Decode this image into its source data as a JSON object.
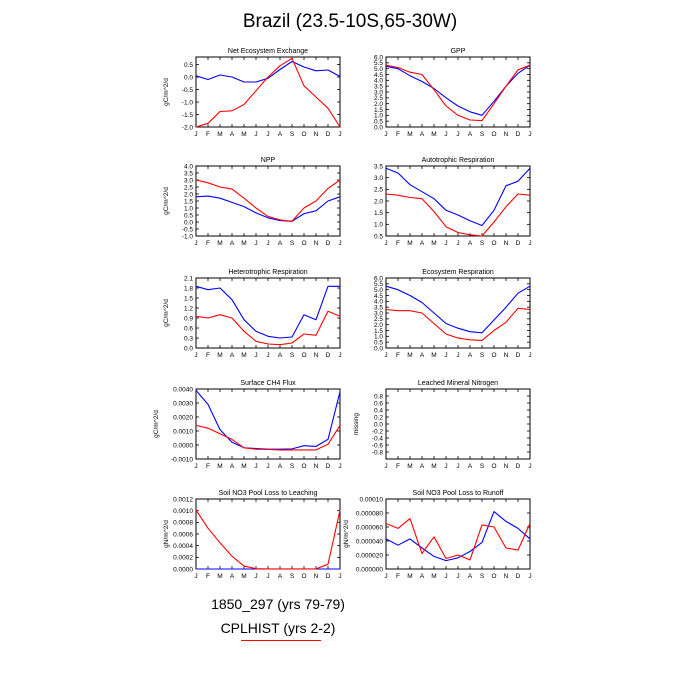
{
  "title": "Brazil (23.5-10S,65-30W)",
  "legend": {
    "case_a": "1850_297 (yrs 79-79)",
    "case_b": "CPLHIST (yrs 2-2)"
  },
  "colors": {
    "case_a": "#0000ff",
    "case_b": "#ff0000"
  },
  "chart_data": [
    {
      "type": "line",
      "title": "Net Ecosystem Exchange",
      "ylabel": "gC/m^2/d",
      "x": [
        "J",
        "F",
        "M",
        "A",
        "M",
        "J",
        "J",
        "A",
        "S",
        "O",
        "N",
        "D",
        "J"
      ],
      "ylim": [
        -2.0,
        0.8
      ],
      "ytick_values": [
        -2.0,
        -1.5,
        -1.0,
        -0.5,
        0.0,
        0.5
      ],
      "ytick_labels": [
        "-2.0",
        "-1.5",
        "-1.0",
        "-0.5",
        "0.0",
        "0.5"
      ],
      "series": [
        {
          "color": "#0000ff",
          "values": [
            0.05,
            -0.1,
            0.08,
            0.0,
            -0.2,
            -0.2,
            -0.05,
            0.3,
            0.62,
            0.4,
            0.25,
            0.28,
            0.02
          ]
        },
        {
          "color": "#ff0000",
          "values": [
            -2.0,
            -1.85,
            -1.38,
            -1.35,
            -1.1,
            -0.55,
            0.0,
            0.45,
            0.75,
            -0.35,
            -0.8,
            -1.25,
            -2.0
          ]
        }
      ]
    },
    {
      "type": "line",
      "title": "GPP",
      "ylabel": "",
      "x": [
        "J",
        "F",
        "M",
        "A",
        "M",
        "J",
        "J",
        "A",
        "S",
        "O",
        "N",
        "D",
        "J"
      ],
      "ylim": [
        0.0,
        6.0
      ],
      "ytick_values": [
        0,
        0.5,
        1,
        1.5,
        2,
        2.5,
        3,
        3.5,
        4,
        4.5,
        5,
        5.5,
        6
      ],
      "ytick_labels": [
        "0.0",
        "0.5",
        "1.0",
        "1.5",
        "2.0",
        "2.5",
        "3.0",
        "3.5",
        "4.0",
        "4.5",
        "5.0",
        "5.5",
        "6.0"
      ],
      "series": [
        {
          "color": "#0000ff",
          "values": [
            5.2,
            5.0,
            4.4,
            3.9,
            3.3,
            2.5,
            1.8,
            1.3,
            1.0,
            2.2,
            3.5,
            4.6,
            5.3
          ]
        },
        {
          "color": "#ff0000",
          "values": [
            5.3,
            5.1,
            4.7,
            4.5,
            3.2,
            1.8,
            1.0,
            0.6,
            0.55,
            2.0,
            3.5,
            4.9,
            5.3
          ]
        }
      ]
    },
    {
      "type": "line",
      "title": "NPP",
      "ylabel": "gC/m^2/d",
      "x": [
        "J",
        "F",
        "M",
        "A",
        "M",
        "J",
        "J",
        "A",
        "S",
        "O",
        "N",
        "D",
        "J"
      ],
      "ylim": [
        -1.0,
        4.0
      ],
      "ytick_values": [
        -1,
        -0.5,
        0,
        0.5,
        1,
        1.5,
        2,
        2.5,
        3,
        3.5,
        4
      ],
      "ytick_labels": [
        "-1.0",
        "-0.5",
        "0.0",
        "0.5",
        "1.0",
        "1.5",
        "2.0",
        "2.5",
        "3.0",
        "3.5",
        "4.0"
      ],
      "series": [
        {
          "color": "#0000ff",
          "values": [
            1.8,
            1.85,
            1.7,
            1.4,
            1.1,
            0.65,
            0.3,
            0.1,
            0.05,
            0.6,
            0.8,
            1.5,
            1.8
          ]
        },
        {
          "color": "#ff0000",
          "values": [
            3.0,
            2.8,
            2.5,
            2.35,
            1.7,
            1.0,
            0.4,
            0.15,
            0.05,
            1.0,
            1.5,
            2.4,
            3.0
          ]
        }
      ]
    },
    {
      "type": "line",
      "title": "Autotrophic Respiration",
      "ylabel": "",
      "x": [
        "J",
        "F",
        "M",
        "A",
        "M",
        "J",
        "J",
        "A",
        "S",
        "O",
        "N",
        "D",
        "J"
      ],
      "ylim": [
        0.5,
        3.5
      ],
      "ytick_values": [
        0.5,
        1,
        1.5,
        2,
        2.5,
        3,
        3.5
      ],
      "ytick_labels": [
        "0.5",
        "1.0",
        "1.5",
        "2.0",
        "2.5",
        "3.0",
        "3.5"
      ],
      "series": [
        {
          "color": "#0000ff",
          "values": [
            3.4,
            3.2,
            2.7,
            2.4,
            2.1,
            1.6,
            1.4,
            1.15,
            0.95,
            1.6,
            2.65,
            2.85,
            3.4
          ]
        },
        {
          "color": "#ff0000",
          "values": [
            2.3,
            2.25,
            2.15,
            2.1,
            1.55,
            0.9,
            0.65,
            0.55,
            0.5,
            1.1,
            1.75,
            2.3,
            2.25
          ]
        }
      ]
    },
    {
      "type": "line",
      "title": "Heterotrophic Respiration",
      "ylabel": "gC/m^2/d",
      "x": [
        "J",
        "F",
        "M",
        "A",
        "M",
        "J",
        "J",
        "A",
        "S",
        "O",
        "N",
        "D",
        "J"
      ],
      "ylim": [
        0.0,
        2.1
      ],
      "ytick_values": [
        0,
        0.3,
        0.6,
        0.9,
        1.2,
        1.5,
        1.8,
        2.1
      ],
      "ytick_labels": [
        "0.0",
        "0.3",
        "0.6",
        "0.9",
        "1.2",
        "1.5",
        "1.8",
        "2.1"
      ],
      "series": [
        {
          "color": "#0000ff",
          "values": [
            1.85,
            1.75,
            1.8,
            1.45,
            0.85,
            0.5,
            0.35,
            0.3,
            0.33,
            1.0,
            0.85,
            1.85,
            1.85
          ]
        },
        {
          "color": "#ff0000",
          "values": [
            0.95,
            0.9,
            1.0,
            0.9,
            0.5,
            0.2,
            0.12,
            0.1,
            0.15,
            0.42,
            0.38,
            1.1,
            0.95
          ]
        }
      ]
    },
    {
      "type": "line",
      "title": "Ecosystem Respiration",
      "ylabel": "",
      "x": [
        "J",
        "F",
        "M",
        "A",
        "M",
        "J",
        "J",
        "A",
        "S",
        "O",
        "N",
        "D",
        "J"
      ],
      "ylim": [
        0.0,
        6.0
      ],
      "ytick_values": [
        0,
        0.5,
        1,
        1.5,
        2,
        2.5,
        3,
        3.5,
        4,
        4.5,
        5,
        5.5,
        6
      ],
      "ytick_labels": [
        "0.0",
        "0.5",
        "1.0",
        "1.5",
        "2.0",
        "2.5",
        "3.0",
        "3.5",
        "4.0",
        "4.5",
        "5.0",
        "5.5",
        "6.0"
      ],
      "series": [
        {
          "color": "#0000ff",
          "values": [
            5.3,
            5.0,
            4.5,
            3.9,
            3.0,
            2.1,
            1.7,
            1.4,
            1.3,
            2.4,
            3.5,
            4.7,
            5.3
          ]
        },
        {
          "color": "#ff0000",
          "values": [
            3.3,
            3.2,
            3.2,
            3.0,
            2.1,
            1.2,
            0.85,
            0.7,
            0.65,
            1.5,
            2.2,
            3.4,
            3.3
          ]
        }
      ]
    },
    {
      "type": "line",
      "title": "Surface CH4 Flux",
      "ylabel": "gC/m^2/d",
      "x": [
        "J",
        "F",
        "M",
        "A",
        "M",
        "J",
        "J",
        "A",
        "S",
        "O",
        "N",
        "D",
        "J"
      ],
      "ylim": [
        -0.001,
        0.004
      ],
      "ytick_values": [
        -0.001,
        0,
        0.001,
        0.002,
        0.003,
        0.004
      ],
      "ytick_labels": [
        "-0.0010",
        "0.0000",
        "0.0010",
        "0.0020",
        "0.0030",
        "0.0040"
      ],
      "series": [
        {
          "color": "#0000ff",
          "values": [
            0.0039,
            0.0029,
            0.0011,
            0.0002,
            -0.0002,
            -0.00025,
            -0.0003,
            -0.0003,
            -0.00028,
            -5e-05,
            -0.0001,
            0.0004,
            0.0038
          ]
        },
        {
          "color": "#ff0000",
          "values": [
            0.0014,
            0.0012,
            0.0008,
            0.0004,
            -0.0002,
            -0.0003,
            -0.00032,
            -0.00035,
            -0.00035,
            -0.00035,
            -0.00035,
            5e-05,
            0.0014
          ]
        }
      ]
    },
    {
      "type": "line",
      "title": "Leached Mineral Nitrogen",
      "ylabel": "missing",
      "x": [
        "J",
        "F",
        "M",
        "A",
        "M",
        "J",
        "J",
        "A",
        "S",
        "O",
        "N",
        "D",
        "J"
      ],
      "ylim": [
        -1.0,
        1.0
      ],
      "ytick_values": [
        -0.8,
        -0.6,
        -0.4,
        -0.2,
        0,
        0.2,
        0.4,
        0.6,
        0.8
      ],
      "ytick_labels": [
        "-0.8",
        "-0.6",
        "-0.4",
        "-0.2",
        "0.0",
        "0.2",
        "0.4",
        "0.6",
        "0.8"
      ],
      "series": []
    },
    {
      "type": "line",
      "title": "Soil NO3 Pool Loss to Leaching",
      "ylabel": "gN/m^2/d",
      "x": [
        "J",
        "F",
        "M",
        "A",
        "M",
        "J",
        "J",
        "A",
        "S",
        "O",
        "N",
        "D",
        "J"
      ],
      "ylim": [
        0.0,
        0.0012
      ],
      "ytick_values": [
        0,
        0.0002,
        0.0004,
        0.0006,
        0.0008,
        0.001,
        0.0012
      ],
      "ytick_labels": [
        "0.0000",
        "0.0002",
        "0.0004",
        "0.0006",
        "0.0008",
        "0.0010",
        "0.0012"
      ],
      "series": [
        {
          "color": "#0000ff",
          "values": [
            5e-07,
            5e-07,
            5e-07,
            5e-07,
            5e-07,
            5e-07,
            5e-07,
            5e-07,
            5e-07,
            5e-07,
            5e-07,
            5e-07,
            5e-07
          ]
        },
        {
          "color": "#ff0000",
          "values": [
            0.00101,
            0.0007,
            0.00045,
            0.00022,
            5e-05,
            5e-06,
            2e-06,
            1e-06,
            1e-06,
            1e-06,
            2e-06,
            8e-05,
            0.00101
          ]
        }
      ]
    },
    {
      "type": "line",
      "title": "Soil NO3 Pool Loss to Runoff",
      "ylabel": "gN/m^2/d",
      "x": [
        "J",
        "F",
        "M",
        "A",
        "M",
        "J",
        "J",
        "A",
        "S",
        "O",
        "N",
        "D",
        "J"
      ],
      "ylim": [
        0.0,
        0.0001
      ],
      "ytick_values": [
        0,
        2e-05,
        4e-05,
        6e-05,
        8e-05,
        0.0001
      ],
      "ytick_labels": [
        "0.000000",
        "0.000020",
        "0.000040",
        "0.000060",
        "0.000080",
        "0.00010"
      ],
      "series": [
        {
          "color": "#0000ff",
          "values": [
            4.3e-05,
            3.4e-05,
            4.3e-05,
            3e-05,
            1.8e-05,
            1.2e-05,
            1.6e-05,
            2.5e-05,
            3.8e-05,
            8.2e-05,
            6.8e-05,
            5.8e-05,
            4.3e-05
          ]
        },
        {
          "color": "#ff0000",
          "values": [
            6.5e-05,
            5.8e-05,
            7.2e-05,
            2.2e-05,
            4.6e-05,
            1.5e-05,
            2e-05,
            1.3e-05,
            6.3e-05,
            6e-05,
            3e-05,
            2.7e-05,
            6.5e-05
          ]
        }
      ]
    }
  ]
}
